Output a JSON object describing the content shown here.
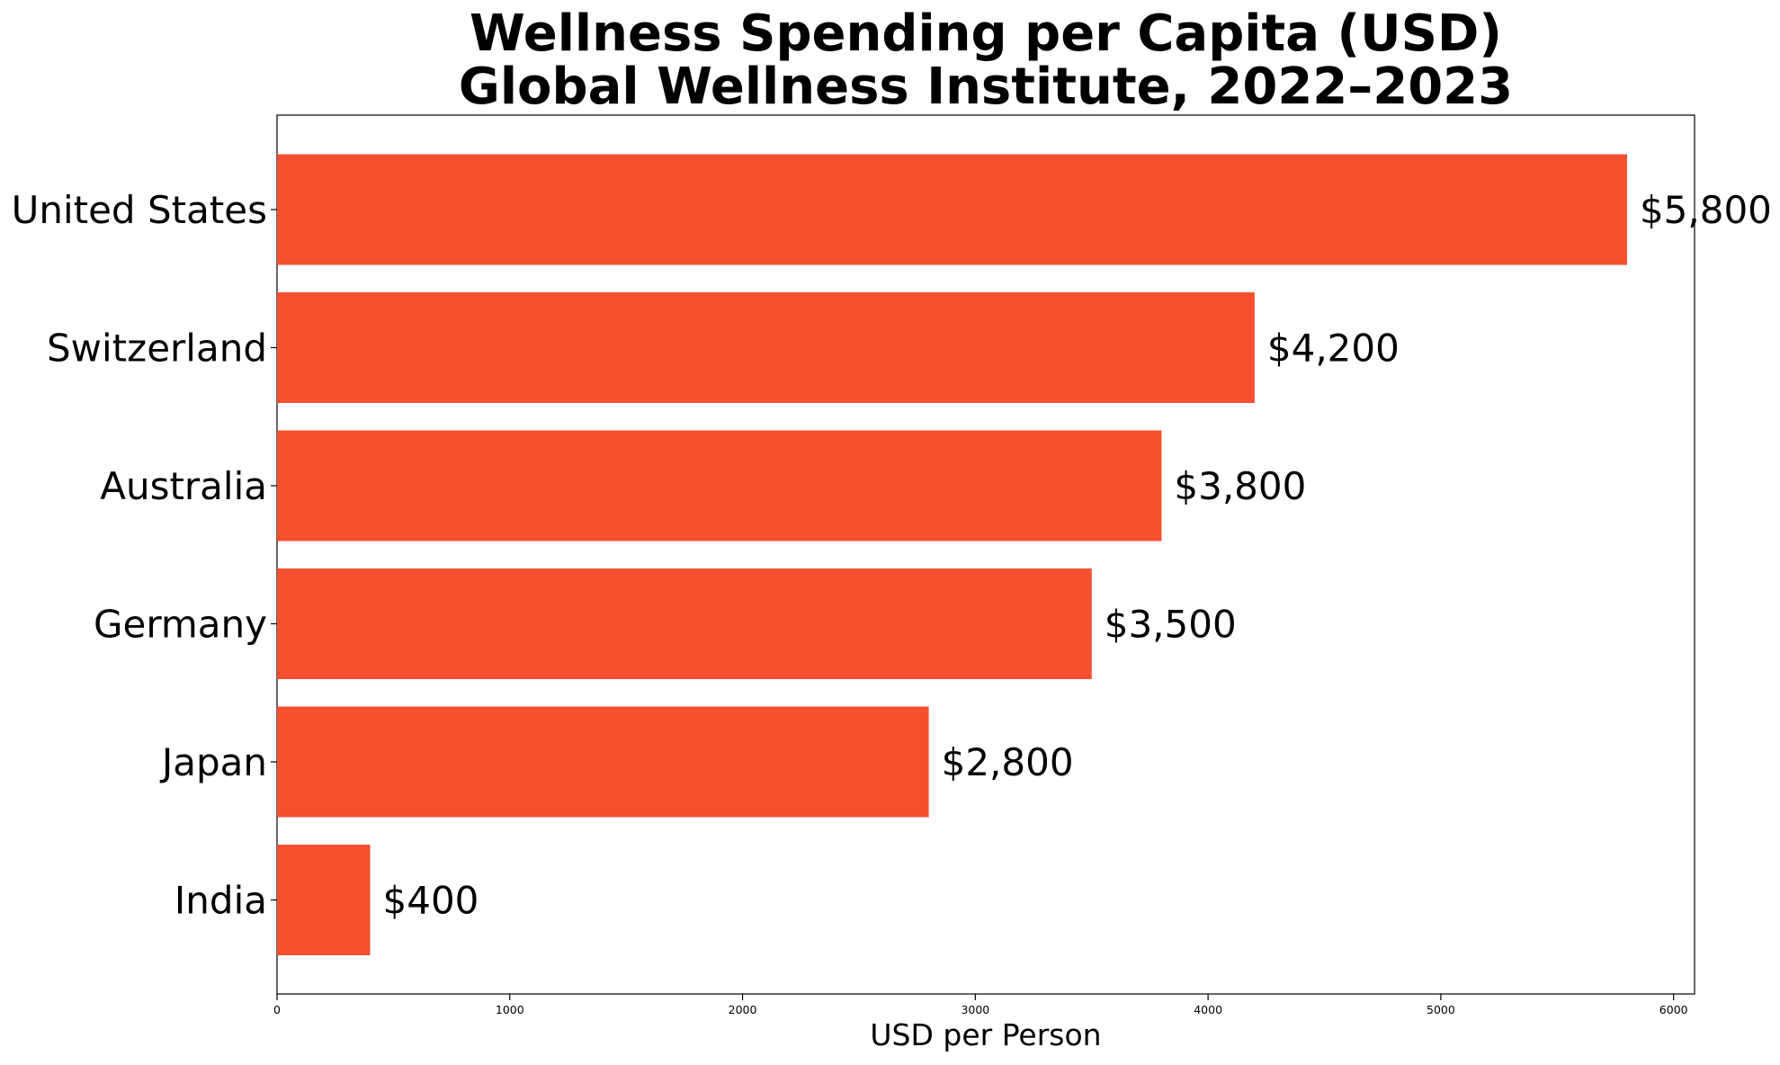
{
  "chart_data": {
    "type": "bar",
    "orientation": "horizontal",
    "title_lines": [
      "Wellness Spending per Capita (USD)",
      "Global Wellness Institute, 2022–2023"
    ],
    "categories": [
      "United States",
      "Switzerland",
      "Australia",
      "Germany",
      "Japan",
      "India"
    ],
    "values": [
      5800,
      4200,
      3800,
      3500,
      2800,
      400
    ],
    "value_labels": [
      "$5,800",
      "$4,200",
      "$3,800",
      "$3,500",
      "$2,800",
      "$400"
    ],
    "xlabel": "USD per Person",
    "ylabel": "",
    "xlim": [
      0,
      6090
    ],
    "xticks": [
      0,
      1000,
      2000,
      3000,
      4000,
      5000,
      6000
    ],
    "xtick_labels": [
      "0",
      "1000",
      "2000",
      "3000",
      "4000",
      "5000",
      "6000"
    ],
    "grid": false,
    "bar_color": "#f44f2f"
  }
}
